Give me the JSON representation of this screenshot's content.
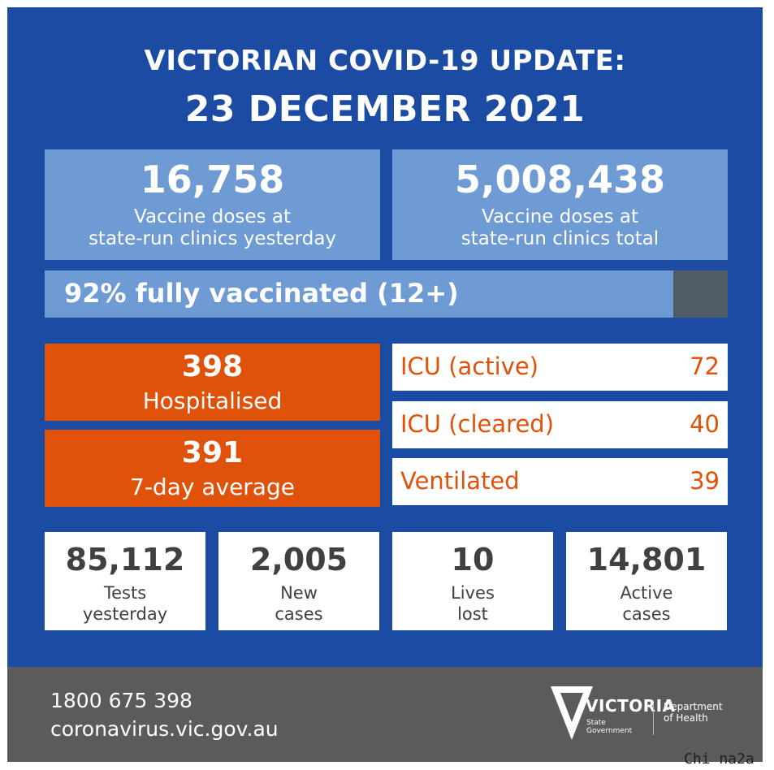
{
  "header": {
    "title_line1": "VICTORIAN COVID-19 UPDATE:",
    "title_line2": "23 DECEMBER 2021"
  },
  "vaccine": {
    "yesterday": {
      "value": "16,758",
      "label_line1": "Vaccine doses at",
      "label_line2": "state-run clinics yesterday"
    },
    "total": {
      "value": "5,008,438",
      "label_line1": "Vaccine doses at",
      "label_line2": "state-run clinics total"
    },
    "fully_vaccinated": {
      "text": "92% fully vaccinated (12+)",
      "percent": 92
    }
  },
  "hospital": {
    "hospitalised": {
      "value": "398",
      "label": "Hospitalised"
    },
    "average": {
      "value": "391",
      "label": "7-day average"
    },
    "rows": [
      {
        "label": "ICU (active)",
        "value": "72"
      },
      {
        "label": "ICU (cleared)",
        "value": "40"
      },
      {
        "label": "Ventilated",
        "value": "39"
      }
    ]
  },
  "stats": [
    {
      "value": "85,112",
      "line1": "Tests",
      "line2": "yesterday"
    },
    {
      "value": "2,005",
      "line1": "New",
      "line2": "cases"
    },
    {
      "value": "10",
      "line1": "Lives",
      "line2": "lost"
    },
    {
      "value": "14,801",
      "line1": "Active",
      "line2": "cases"
    }
  ],
  "footer": {
    "phone": "1800 675 398",
    "website": "coronavirus.vic.gov.au",
    "logo_word": "VICTORIA",
    "logo_sub_line1": "State",
    "logo_sub_line2": "Government",
    "dept_line1": "Department",
    "dept_line2": "of Health"
  },
  "watermark": "Chi na2a",
  "colors": {
    "panel_blue": "#1b4ba3",
    "light_blue": "#6e9bd3",
    "orange": "#e0510a",
    "dark_grey": "#505b66",
    "footer_grey": "#5b5b5b"
  }
}
